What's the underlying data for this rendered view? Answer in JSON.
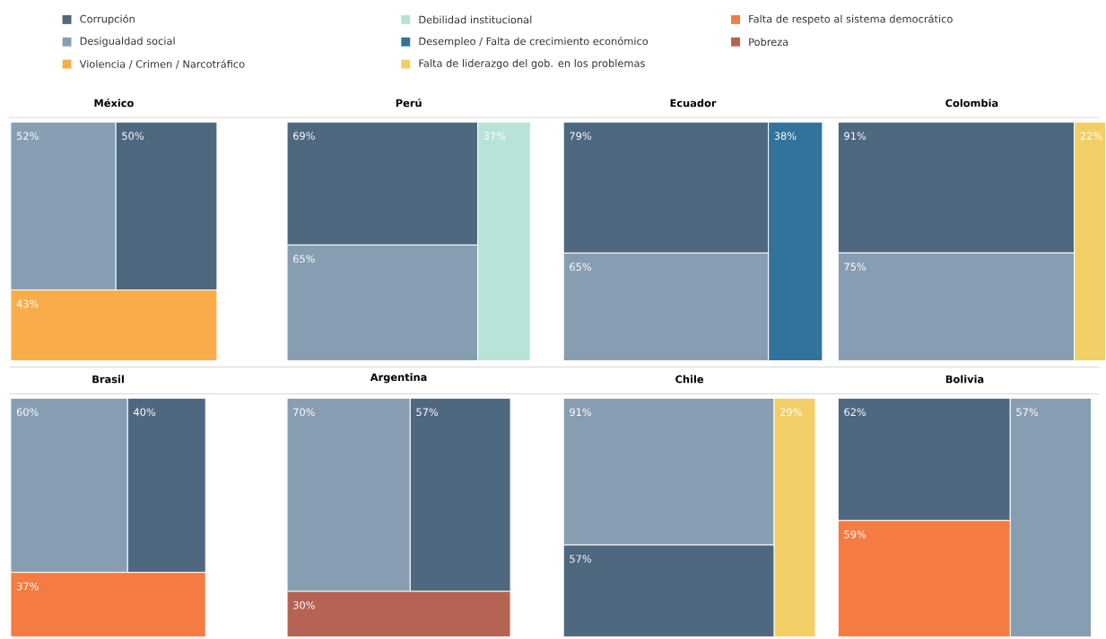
{
  "chart_data": [
    {
      "type": "other",
      "categories": [
        "Corrupción",
        "Desigualdad social",
        "Violencia / Crimen / Narcotráfico",
        "Debilidad institucional",
        "Desempleo / Falta de crecimiento económico",
        "Falta de liderazgo del gob. en los problemas",
        "Falta de respeto al sistema democrático",
        "Pobreza"
      ],
      "colors": [
        "#4e6880",
        "#879eb2",
        "#f9ad4a",
        "#b7e3d8",
        "#31739a",
        "#f2cf66",
        "#f47c43",
        "#b56353"
      ]
    },
    {
      "type": "other",
      "title": "México",
      "values": [
        52,
        50,
        43
      ],
      "value_labels": [
        "52%",
        "50%",
        "43%"
      ],
      "colors": [
        "#879eb2",
        "#4e6880",
        "#f9ad4a"
      ]
    },
    {
      "type": "other",
      "title": "Perú",
      "values": [
        69,
        37,
        65
      ],
      "value_labels": [
        "69%",
        "37%",
        "65%"
      ],
      "colors": [
        "#4e6880",
        "#b7e3d8",
        "#879eb2"
      ]
    },
    {
      "type": "other",
      "title": "Ecuador",
      "values": [
        79,
        38,
        65
      ],
      "value_labels": [
        "79%",
        "38%",
        "65%"
      ],
      "colors": [
        "#4e6880",
        "#31739a",
        "#879eb2"
      ]
    },
    {
      "type": "other",
      "title": "Colombia",
      "values": [
        91,
        22,
        75
      ],
      "value_labels": [
        "91%",
        "22%",
        "75%"
      ],
      "colors": [
        "#4e6880",
        "#f2cf66",
        "#879eb2"
      ]
    },
    {
      "type": "other",
      "title": "Brasil",
      "values": [
        60,
        40,
        37
      ],
      "value_labels": [
        "60%",
        "40%",
        "37%"
      ],
      "colors": [
        "#879eb2",
        "#4e6880",
        "#f47c43"
      ]
    },
    {
      "type": "other",
      "title": "Argentina",
      "values": [
        70,
        57,
        30
      ],
      "value_labels": [
        "70%",
        "57%",
        "30%"
      ],
      "colors": [
        "#879eb2",
        "#4e6880",
        "#b56353"
      ]
    },
    {
      "type": "other",
      "title": "Chile",
      "values": [
        91,
        29,
        57
      ],
      "value_labels": [
        "91%",
        "29%",
        "57%"
      ],
      "colors": [
        "#879eb2",
        "#f2cf66",
        "#4e6880"
      ]
    },
    {
      "type": "other",
      "title": "Bolivia",
      "values": [
        62,
        57,
        59
      ],
      "value_labels": [
        "62%",
        "57%",
        "59%"
      ],
      "colors": [
        "#4e6880",
        "#879eb2",
        "#f47c43"
      ]
    }
  ]
}
